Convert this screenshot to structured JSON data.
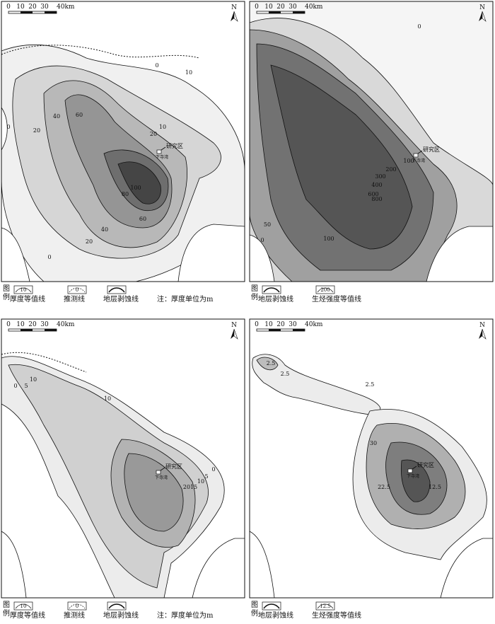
{
  "panels": [
    {
      "scale_labels": [
        "0",
        "10",
        "20",
        "30",
        "40km"
      ],
      "north": "N",
      "study_area": "研究区",
      "well": "下寺湾",
      "contour_labels": [
        "0",
        "10",
        "10",
        "20",
        "40",
        "60",
        "20",
        "0",
        "100",
        "80",
        "60",
        "40",
        "20",
        "0"
      ],
      "legend_heading": [
        "图",
        "例"
      ],
      "legend": [
        {
          "symbol_label": "10",
          "label": "厚度等值线"
        },
        {
          "symbol_label": "0",
          "label": "推测线"
        },
        {
          "label": "地层剥蚀线"
        }
      ],
      "note": "注：厚度单位为m"
    },
    {
      "scale_labels": [
        "0",
        "10",
        "20",
        "30",
        "40km"
      ],
      "north": "N",
      "study_area": "研究区",
      "well": "下寺湾",
      "contour_labels": [
        "0",
        "100",
        "200",
        "300",
        "400",
        "600",
        "800",
        "50",
        "0",
        "100"
      ],
      "legend_heading": [
        "图",
        "例"
      ],
      "legend": [
        {
          "label": "地层剥蚀线"
        },
        {
          "symbol_label": "200",
          "label": "生烃强度等值线"
        }
      ]
    },
    {
      "scale_labels": [
        "0",
        "10",
        "20",
        "30",
        "40km"
      ],
      "north": "N",
      "study_area": "研究区",
      "well": "下寺湾",
      "contour_labels": [
        "0",
        "5",
        "10",
        "10",
        "0",
        "5",
        "10",
        "15",
        "20"
      ],
      "legend_heading": [
        "图",
        "例"
      ],
      "legend": [
        {
          "symbol_label": "10",
          "label": "厚度等值线"
        },
        {
          "symbol_label": "0",
          "label": "推测线"
        },
        {
          "label": "地层剥蚀线"
        }
      ],
      "note": "注：厚度单位为m"
    },
    {
      "scale_labels": [
        "0",
        "10",
        "20",
        "30",
        "40km"
      ],
      "north": "N",
      "study_area": "研究区",
      "well": "下寺湾",
      "contour_labels": [
        "2.5",
        "2.5",
        "2.5",
        "30",
        "22.5",
        "12.5"
      ],
      "legend_heading": [
        "图",
        "例"
      ],
      "legend": [
        {
          "label": "地层剥蚀线"
        },
        {
          "symbol_label": "12.5",
          "label": "生烃强度等值线"
        }
      ]
    }
  ]
}
